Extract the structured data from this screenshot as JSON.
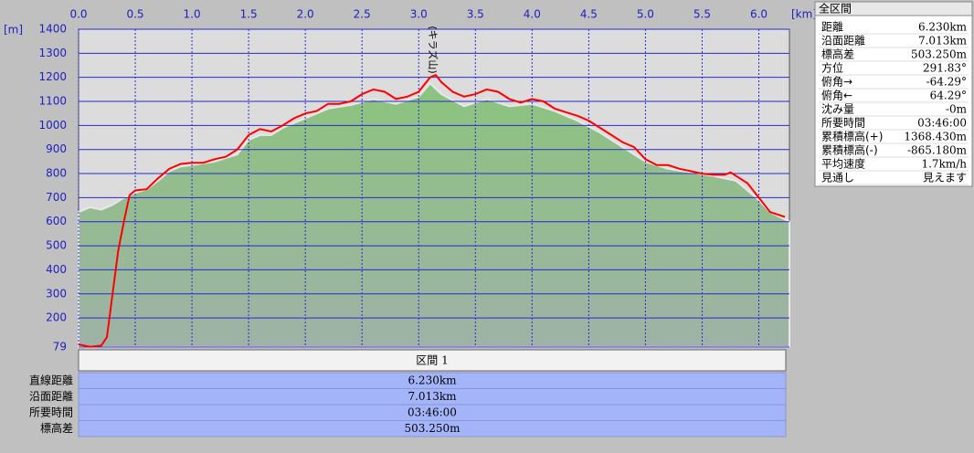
{
  "chart_data": {
    "type": "line",
    "xlabel": "[km]",
    "ylabel": "[m]",
    "xlim": [
      0,
      6.27
    ],
    "ylim": [
      79,
      1400
    ],
    "xticks": [
      {
        "value": 0,
        "label": "0.0"
      },
      0.5,
      {
        "value": 1,
        "label": "1.0"
      },
      1.5,
      {
        "value": 2,
        "label": "2.0"
      },
      2.5,
      {
        "value": 3,
        "label": "3.0"
      },
      3.5,
      {
        "value": 4,
        "label": "4.0"
      },
      4.5,
      {
        "value": 5,
        "label": "5.0"
      },
      5.5,
      {
        "value": 6,
        "label": "6.0"
      }
    ],
    "yticks": [
      79,
      200,
      300,
      400,
      500,
      600,
      700,
      800,
      900,
      1000,
      1100,
      1200,
      1300,
      1400
    ],
    "grid": true,
    "annotations": [
      {
        "text": "(キラズ山)",
        "x": 3.12
      }
    ],
    "series": [
      {
        "color": "#8fc484",
        "area": true,
        "x": [
          0,
          0.1,
          0.2,
          0.3,
          0.4,
          0.5,
          0.6,
          0.7,
          0.8,
          0.9,
          1.0,
          1.2,
          1.4,
          1.5,
          1.6,
          1.7,
          1.8,
          1.9,
          2.0,
          2.2,
          2.4,
          2.6,
          2.8,
          3.0,
          3.1,
          3.2,
          3.4,
          3.6,
          3.8,
          4.0,
          4.2,
          4.4,
          4.6,
          4.8,
          5.0,
          5.2,
          5.4,
          5.6,
          5.8,
          6.0,
          6.1,
          6.27
        ],
        "values": [
          640,
          660,
          650,
          670,
          700,
          720,
          735,
          770,
          810,
          830,
          835,
          850,
          880,
          940,
          960,
          960,
          990,
          1010,
          1030,
          1070,
          1085,
          1110,
          1090,
          1120,
          1175,
          1130,
          1080,
          1110,
          1080,
          1090,
          1060,
          1020,
          970,
          910,
          850,
          820,
          805,
          790,
          770,
          690,
          640,
          600
        ]
      },
      {
        "color": "#ff0000",
        "area": false,
        "x": [
          0,
          0.1,
          0.2,
          0.25,
          0.3,
          0.35,
          0.4,
          0.45,
          0.5,
          0.6,
          0.7,
          0.8,
          0.9,
          1.0,
          1.1,
          1.2,
          1.3,
          1.4,
          1.5,
          1.6,
          1.7,
          1.8,
          1.9,
          2.0,
          2.1,
          2.2,
          2.3,
          2.4,
          2.5,
          2.6,
          2.7,
          2.8,
          2.9,
          3.0,
          3.1,
          3.15,
          3.2,
          3.3,
          3.4,
          3.5,
          3.6,
          3.7,
          3.8,
          3.9,
          4.0,
          4.1,
          4.2,
          4.3,
          4.4,
          4.5,
          4.6,
          4.7,
          4.8,
          4.9,
          5.0,
          5.1,
          5.2,
          5.3,
          5.4,
          5.5,
          5.6,
          5.7,
          5.75,
          5.8,
          5.9,
          6.0,
          6.1,
          6.23
        ],
        "values": [
          90,
          80,
          85,
          120,
          300,
          480,
          600,
          710,
          730,
          735,
          780,
          820,
          840,
          845,
          845,
          860,
          870,
          900,
          960,
          985,
          975,
          1000,
          1030,
          1050,
          1060,
          1090,
          1090,
          1100,
          1130,
          1150,
          1140,
          1110,
          1120,
          1140,
          1200,
          1210,
          1180,
          1140,
          1120,
          1130,
          1150,
          1140,
          1110,
          1095,
          1110,
          1100,
          1070,
          1055,
          1040,
          1020,
          990,
          960,
          930,
          910,
          860,
          835,
          835,
          820,
          810,
          800,
          795,
          795,
          805,
          790,
          760,
          700,
          640,
          620
        ]
      }
    ]
  },
  "summary": {
    "title": "全区間",
    "rows": [
      [
        "距離",
        "6.230km"
      ],
      [
        "沿面距離",
        "7.013km"
      ],
      [
        "標高差",
        "503.250m"
      ],
      [
        "方位",
        "291.83°"
      ],
      [
        "俯角→",
        "-64.29°"
      ],
      [
        "俯角←",
        "64.29°"
      ],
      [
        "沈み量",
        "-0m"
      ],
      [
        "所要時間",
        "03:46:00"
      ],
      [
        "累積標高(+)",
        "1368.430m"
      ],
      [
        "累積標高(-)",
        "-865.180m"
      ],
      [
        "平均速度",
        "1.7km/h"
      ],
      [
        "見通し",
        "見えます"
      ]
    ]
  },
  "section_table": {
    "header": "区間 1",
    "rows": [
      [
        "直線距離",
        "6.230km"
      ],
      [
        "沿面距離",
        "7.013km"
      ],
      [
        "所要時間",
        "03:46:00"
      ],
      [
        "標高差",
        "503.250m"
      ]
    ]
  }
}
